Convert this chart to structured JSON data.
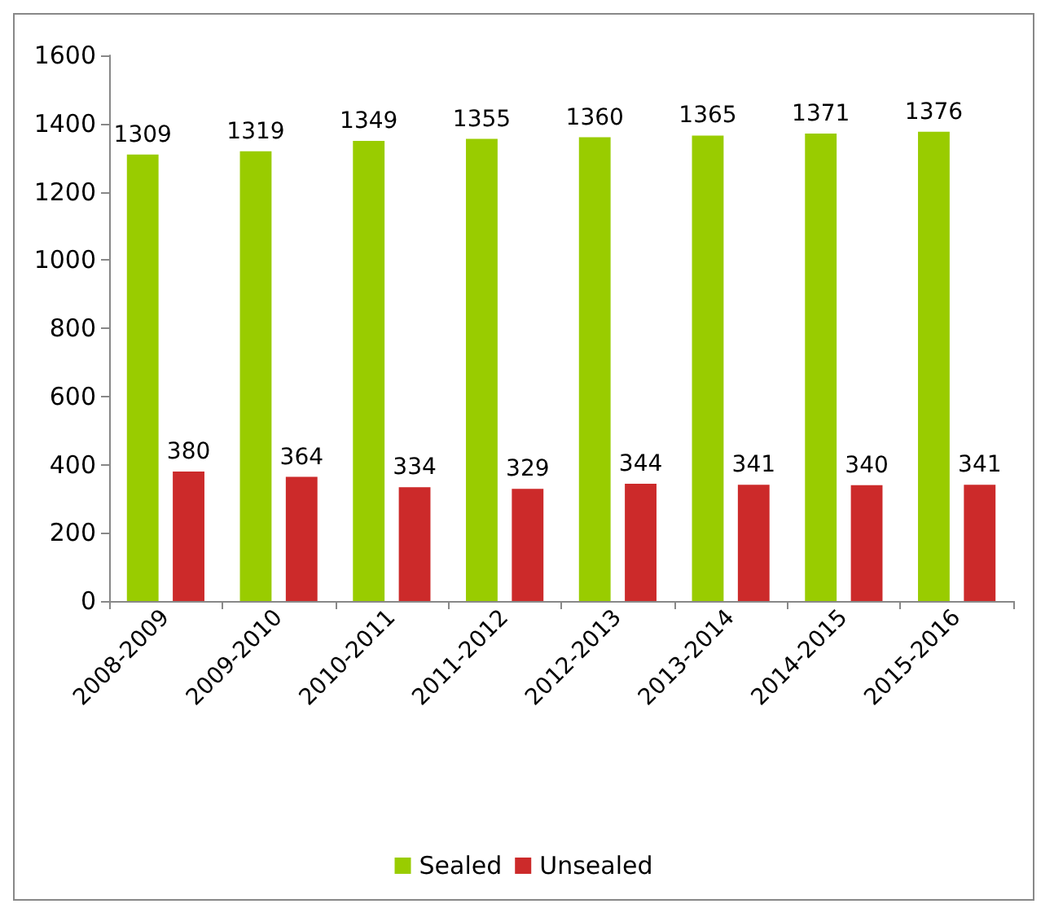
{
  "chart_data": {
    "type": "bar",
    "categories": [
      "2008-2009",
      "2009-2010",
      "2010-2011",
      "2011-2012",
      "2012-2013",
      "2013-2014",
      "2014-2015",
      "2015-2016"
    ],
    "series": [
      {
        "name": "Sealed",
        "color": "#99cc00",
        "values": [
          1309,
          1319,
          1349,
          1355,
          1360,
          1365,
          1371,
          1376
        ]
      },
      {
        "name": "Unsealed",
        "color": "#cc2a2a",
        "values": [
          380,
          364,
          334,
          329,
          344,
          341,
          340,
          341
        ]
      }
    ],
    "ylim": [
      0,
      1600
    ],
    "yticks": [
      0,
      200,
      400,
      600,
      800,
      1000,
      1200,
      1400,
      1600
    ],
    "grid": false,
    "legend": "bottom",
    "data_labels": true
  }
}
